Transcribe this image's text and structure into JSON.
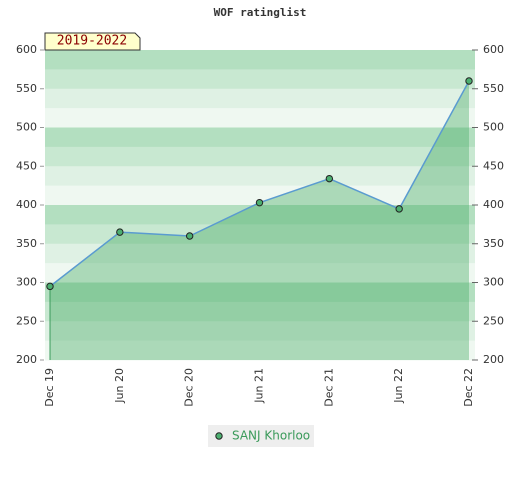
{
  "chart_data": {
    "type": "line",
    "title": "WOF ratinglist",
    "annotation": "2019-2022",
    "categories": [
      "Dec 19",
      "Jun 20",
      "Dec 20",
      "Jun 21",
      "Dec 21",
      "Jun 22",
      "Dec 22"
    ],
    "series": [
      {
        "name": "SANJ Khorloo",
        "color": "#5a9bd0",
        "values": [
          295,
          365,
          360,
          403,
          434,
          395,
          560
        ]
      }
    ],
    "ylim": [
      200,
      600
    ],
    "yticks": [
      200,
      250,
      300,
      350,
      400,
      450,
      500,
      550,
      600
    ],
    "y2lim": [
      200,
      600
    ],
    "y2ticks": [
      200,
      250,
      300,
      350,
      400,
      450,
      500,
      550,
      600
    ]
  }
}
